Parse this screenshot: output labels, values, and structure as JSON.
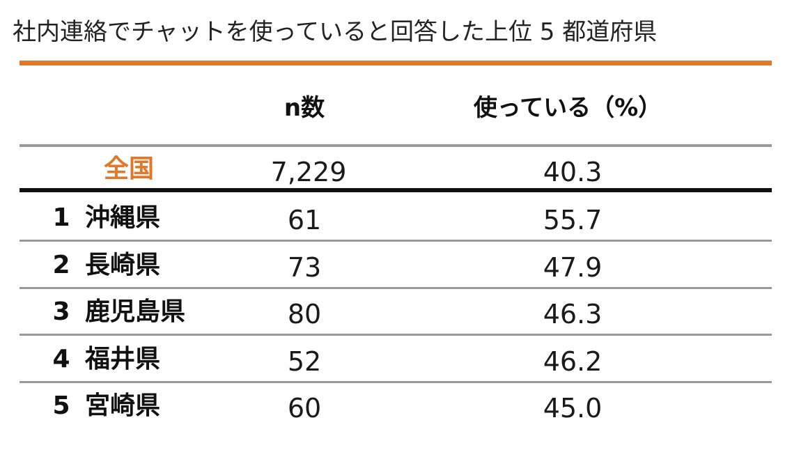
{
  "title": "社内連絡でチャットを使っていると回答した上位 5 都道府県",
  "table": {
    "header": {
      "n": "n数",
      "pct": "使っている（%）"
    },
    "national": {
      "label": "全国",
      "n": "7,229",
      "pct": "40.3"
    },
    "rows": [
      {
        "rank": "1",
        "name": "沖縄県",
        "n": "61",
        "pct": "55.7"
      },
      {
        "rank": "2",
        "name": "長崎県",
        "n": "73",
        "pct": "47.9"
      },
      {
        "rank": "3",
        "name": "鹿児島県",
        "n": "80",
        "pct": "46.3"
      },
      {
        "rank": "4",
        "name": "福井県",
        "n": "52",
        "pct": "46.2"
      },
      {
        "rank": "5",
        "name": "宮崎県",
        "n": "60",
        "pct": "45.0"
      }
    ]
  }
}
